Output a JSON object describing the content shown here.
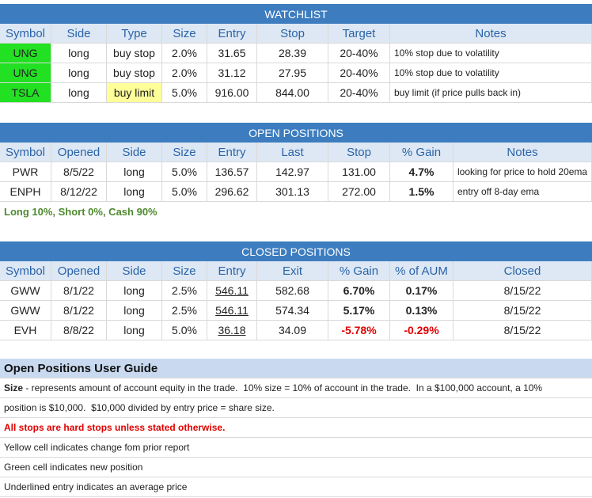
{
  "watchlist": {
    "title": "WATCHLIST",
    "columns": [
      "Symbol",
      "Side",
      "Type",
      "Size",
      "Entry",
      "Stop",
      "Target",
      "Notes"
    ],
    "rows": [
      [
        "UNG",
        "long",
        "buy stop",
        "2.0%",
        "31.65",
        "28.39",
        "20-40%",
        "10% stop due to volatility"
      ],
      [
        "UNG",
        "long",
        "buy stop",
        "2.0%",
        "31.12",
        "27.95",
        "20-40%",
        "10% stop due to volatility"
      ],
      [
        "TSLA",
        "long",
        "buy limit",
        "5.0%",
        "916.00",
        "844.00",
        "20-40%",
        "buy limit (if price pulls back in)"
      ]
    ]
  },
  "open_positions": {
    "title": "OPEN POSITIONS",
    "columns": [
      "Symbol",
      "Opened",
      "Side",
      "Size",
      "Entry",
      "Last",
      "Stop",
      "% Gain",
      "Notes"
    ],
    "rows": [
      [
        "PWR",
        "8/5/22",
        "long",
        "5.0%",
        "136.57",
        "142.97",
        "131.00",
        "4.7%",
        "looking for price to hold 20ema"
      ],
      [
        "ENPH",
        "8/12/22",
        "long",
        "5.0%",
        "296.62",
        "301.13",
        "272.00",
        "1.5%",
        "entry off 8-day ema"
      ]
    ],
    "summary": "Long 10%, Short 0%, Cash 90%"
  },
  "closed_positions": {
    "title": "CLOSED POSITIONS",
    "columns": [
      "Symbol",
      "Opened",
      "Side",
      "Size",
      "Entry",
      "Exit",
      "% Gain",
      "% of AUM",
      "Closed"
    ],
    "rows": [
      [
        "GWW",
        "8/1/22",
        "long",
        "2.5%",
        "546.11",
        "582.68",
        "6.70%",
        "0.17%",
        "8/15/22"
      ],
      [
        "GWW",
        "8/1/22",
        "long",
        "2.5%",
        "546.11",
        "574.34",
        "5.17%",
        "0.13%",
        "8/15/22"
      ],
      [
        "EVH",
        "8/8/22",
        "long",
        "5.0%",
        "36.18",
        "34.09",
        "-5.78%",
        "-0.29%",
        "8/15/22"
      ]
    ]
  },
  "guide": {
    "title": "Open Positions User Guide",
    "size_label": "Size",
    "lines": [
      " - represents amount of account equity in the trade.  10% size = 10% of account in the trade.  In a $100,000 account, a 10%",
      "position is $10,000.  $10,000 divided by entry price = share size.",
      "All stops are hard stops unless stated otherwise.",
      "Yellow cell indicates change fom prior report",
      "Green cell indicates new position",
      "Underlined entry indicates an average price"
    ]
  }
}
